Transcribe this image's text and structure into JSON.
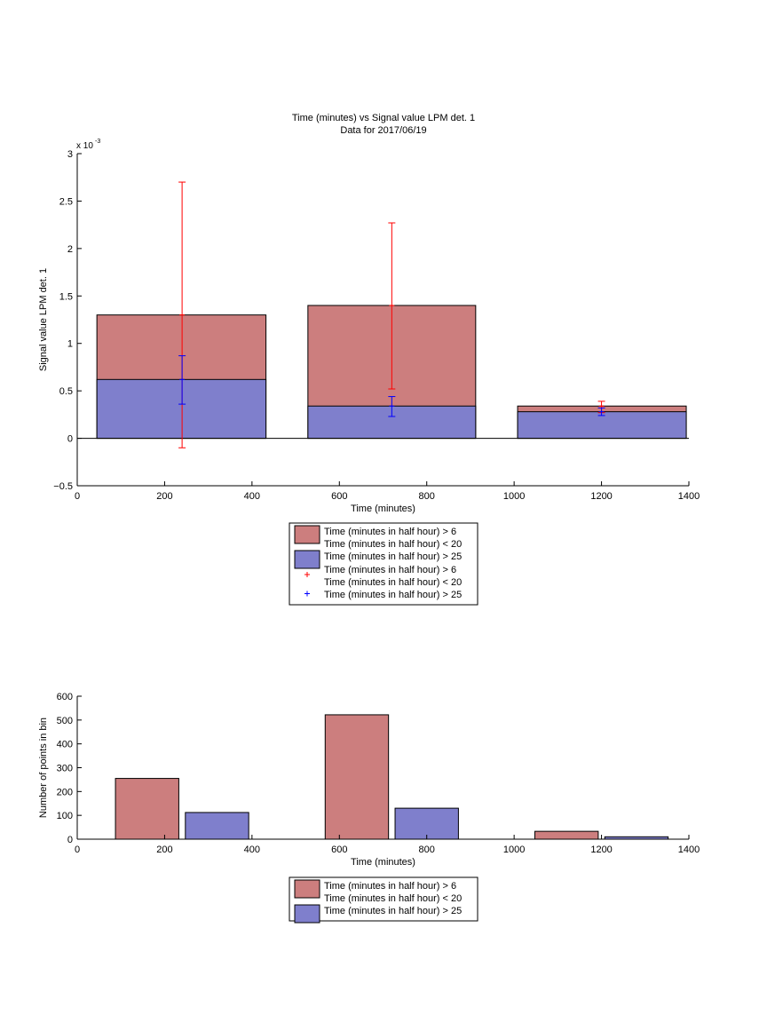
{
  "figure": {
    "title_line1": "Time (minutes) vs Signal value LPM det. 1",
    "title_line2": "Data for 2017/06/19"
  },
  "colors": {
    "red_bar": "#cc7e7e",
    "blue_bar": "#7f7fcc",
    "red_err": "#ff0000",
    "blue_err": "#0000ff"
  },
  "chart_data": [
    {
      "type": "bar",
      "title": "Time (minutes) vs Signal value LPM det. 1",
      "subtitle": "Data for 2017/06/19",
      "xlabel": "Time (minutes)",
      "ylabel": "Signal value LPM det. 1",
      "y_multiplier": "x 10",
      "y_exponent": "-3",
      "xlim": [
        0,
        1400
      ],
      "ylim": [
        -0.5,
        3
      ],
      "xticks": [
        "0",
        "200",
        "400",
        "600",
        "800",
        "1000",
        "1200",
        "1400"
      ],
      "yticks": [
        "−0.5",
        "0",
        "0.5",
        "1",
        "1.5",
        "2",
        "2.5",
        "3"
      ],
      "grid": false,
      "legend_position": "below",
      "bar_range": [
        {
          "x_start": 45,
          "x_end": 432
        },
        {
          "x_start": 528,
          "x_end": 912
        },
        {
          "x_start": 1008,
          "x_end": 1394
        }
      ],
      "series": [
        {
          "name": "Time (minutes in half hour) > 6\nTime (minutes in half hour) < 20",
          "color": "#cc7e7e",
          "values": [
            1.3,
            1.4,
            0.34
          ]
        },
        {
          "name": "Time (minutes in half hour) > 25",
          "color": "#7f7fcc",
          "values": [
            0.62,
            0.34,
            0.28
          ]
        }
      ],
      "error_bars": [
        {
          "name": "Time (minutes in half hour) > 6\nTime (minutes in half hour) < 20",
          "color": "#ff0000",
          "x": [
            240,
            720,
            1200
          ],
          "y": [
            1.3,
            1.4,
            0.34
          ],
          "low": [
            -0.1,
            0.52,
            0.27
          ],
          "high": [
            2.7,
            2.27,
            0.39
          ]
        },
        {
          "name": "Time (minutes in half hour) > 25",
          "color": "#0000ff",
          "x": [
            240,
            720,
            1200
          ],
          "y": [
            0.62,
            0.34,
            0.28
          ],
          "low": [
            0.36,
            0.23,
            0.24
          ],
          "high": [
            0.87,
            0.44,
            0.32
          ]
        }
      ],
      "legend": [
        {
          "kind": "patch",
          "color": "#cc7e7e",
          "line1": "Time (minutes in half hour) > 6",
          "line2": "Time (minutes in half hour) < 20"
        },
        {
          "kind": "patch",
          "color": "#7f7fcc",
          "line1": "Time (minutes in half hour) > 25",
          "line2": ""
        },
        {
          "kind": "marker",
          "color": "#ff0000",
          "line1": "Time (minutes in half hour) > 6",
          "line2": "Time (minutes in half hour) < 20"
        },
        {
          "kind": "marker",
          "color": "#0000ff",
          "line1": "Time (minutes in half hour) > 25",
          "line2": ""
        }
      ]
    },
    {
      "type": "bar",
      "xlabel": "Time (minutes)",
      "ylabel": "Number of points in bin",
      "xlim": [
        0,
        1400
      ],
      "ylim": [
        0,
        600
      ],
      "xticks": [
        "0",
        "200",
        "400",
        "600",
        "800",
        "1000",
        "1200",
        "1400"
      ],
      "yticks": [
        "0",
        "100",
        "200",
        "300",
        "400",
        "500",
        "600"
      ],
      "grid": false,
      "legend_position": "below",
      "series": [
        {
          "name": "Time (minutes in half hour) > 6\nTime (minutes in half hour) < 20",
          "color": "#cc7e7e",
          "x": [
            160,
            640,
            1120
          ],
          "values": [
            255,
            522,
            33
          ]
        },
        {
          "name": "Time (minutes in half hour) > 25",
          "color": "#7f7fcc",
          "x": [
            320,
            800,
            1280
          ],
          "values": [
            112,
            130,
            10
          ]
        }
      ],
      "bar_width": 145,
      "legend": [
        {
          "kind": "patch",
          "color": "#cc7e7e",
          "line1": "Time (minutes in half hour) > 6",
          "line2": "Time (minutes in half hour) < 20"
        },
        {
          "kind": "patch",
          "color": "#7f7fcc",
          "line1": "Time (minutes in half hour) > 25",
          "line2": ""
        }
      ]
    }
  ]
}
